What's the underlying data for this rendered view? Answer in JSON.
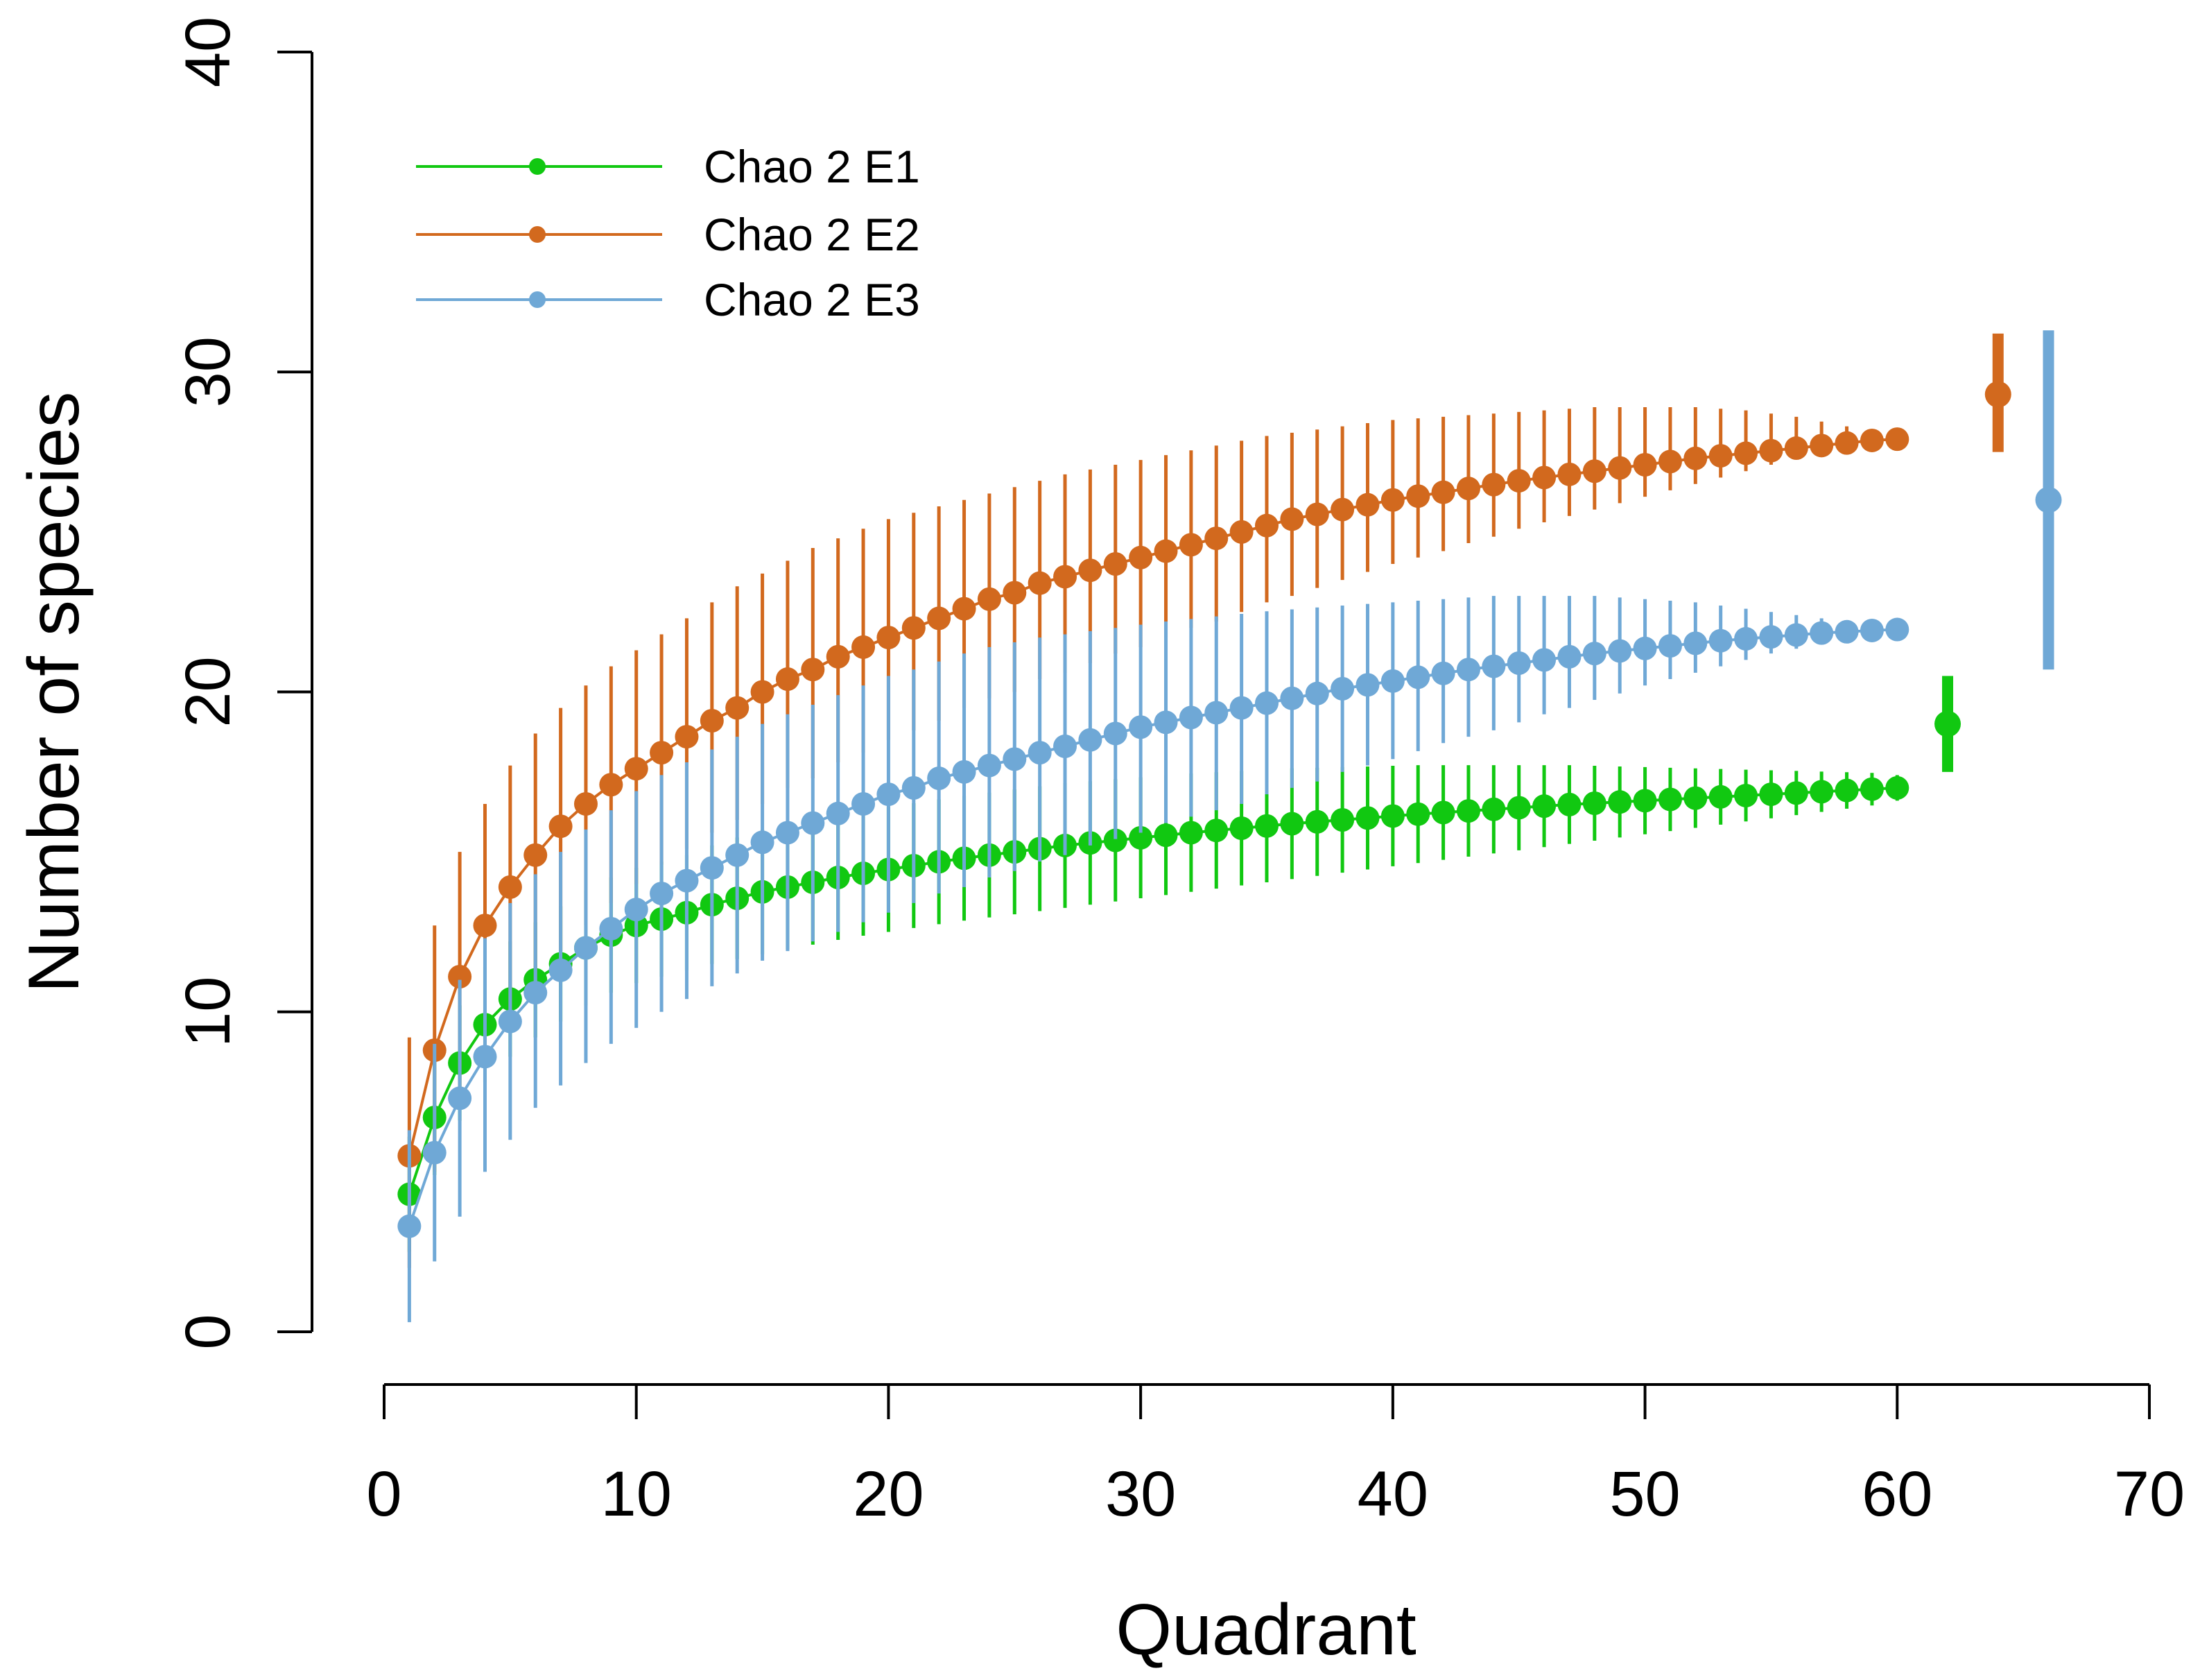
{
  "chart_data": {
    "type": "line",
    "title": "",
    "xlabel": "Quadrant",
    "ylabel": "Number of species",
    "xlim": [
      0,
      70
    ],
    "ylim": [
      0,
      40
    ],
    "xticks": [
      0,
      10,
      20,
      30,
      40,
      50,
      60,
      70
    ],
    "yticks": [
      0,
      10,
      20,
      30,
      40
    ],
    "grid": false,
    "legend_position": "top-left",
    "x": [
      1,
      2,
      3,
      4,
      5,
      6,
      7,
      8,
      9,
      10,
      11,
      12,
      13,
      14,
      15,
      16,
      17,
      18,
      19,
      20,
      21,
      22,
      23,
      24,
      25,
      26,
      27,
      28,
      29,
      30,
      31,
      32,
      33,
      34,
      35,
      36,
      37,
      38,
      39,
      40,
      41,
      42,
      43,
      44,
      45,
      46,
      47,
      48,
      49,
      50,
      51,
      52,
      53,
      54,
      55,
      56,
      57,
      58,
      59,
      60
    ],
    "series": [
      {
        "name": "Chao 2 E1",
        "color": "#11c811",
        "values": [
          4.3,
          6.7,
          8.4,
          9.6,
          10.4,
          11.0,
          11.5,
          12.0,
          12.4,
          12.7,
          12.9,
          13.1,
          13.35,
          13.55,
          13.75,
          13.9,
          14.05,
          14.2,
          14.33,
          14.45,
          14.57,
          14.69,
          14.8,
          14.9,
          15.0,
          15.1,
          15.2,
          15.28,
          15.36,
          15.44,
          15.52,
          15.6,
          15.67,
          15.74,
          15.81,
          15.88,
          15.94,
          16.0,
          16.06,
          16.12,
          16.18,
          16.23,
          16.28,
          16.33,
          16.38,
          16.43,
          16.48,
          16.52,
          16.56,
          16.6,
          16.64,
          16.68,
          16.72,
          16.76,
          16.8,
          16.84,
          16.88,
          16.92,
          16.96,
          17.0
        ],
        "lower": [
          2.5,
          4.9,
          6.6,
          7.8,
          8.6,
          9.2,
          9.7,
          10.2,
          10.6,
          10.9,
          11.1,
          11.3,
          11.5,
          11.65,
          11.8,
          11.95,
          12.1,
          12.25,
          12.38,
          12.5,
          12.62,
          12.74,
          12.85,
          12.95,
          13.05,
          13.15,
          13.25,
          13.35,
          13.45,
          13.55,
          13.65,
          13.75,
          13.85,
          13.95,
          14.05,
          14.15,
          14.25,
          14.35,
          14.45,
          14.55,
          14.65,
          14.75,
          14.85,
          14.95,
          15.05,
          15.15,
          15.25,
          15.35,
          15.45,
          15.55,
          15.65,
          15.75,
          15.85,
          15.95,
          16.05,
          16.15,
          16.25,
          16.35,
          16.45,
          16.6
        ],
        "upper": [
          6.1,
          8.5,
          10.2,
          11.4,
          12.2,
          12.8,
          13.3,
          13.8,
          14.2,
          14.5,
          14.7,
          14.9,
          15.2,
          15.45,
          15.7,
          15.85,
          16.0,
          16.15,
          16.28,
          16.4,
          16.52,
          16.64,
          16.75,
          16.85,
          16.95,
          17.05,
          17.15,
          17.21,
          17.27,
          17.33,
          17.39,
          17.45,
          17.49,
          17.53,
          17.57,
          17.61,
          17.63,
          17.65,
          17.67,
          17.69,
          17.71,
          17.71,
          17.71,
          17.71,
          17.71,
          17.71,
          17.71,
          17.69,
          17.67,
          17.65,
          17.63,
          17.61,
          17.59,
          17.57,
          17.55,
          17.53,
          17.51,
          17.49,
          17.47,
          17.4
        ],
        "estimate": {
          "x": 62,
          "value": 19.0,
          "lower": 17.5,
          "upper": 20.5
        }
      },
      {
        "name": "Chao 2 E2",
        "color": "#d2691e",
        "values": [
          5.5,
          8.8,
          11.1,
          12.7,
          13.9,
          14.9,
          15.8,
          16.5,
          17.1,
          17.6,
          18.1,
          18.6,
          19.1,
          19.5,
          20.0,
          20.4,
          20.7,
          21.1,
          21.4,
          21.7,
          22.0,
          22.3,
          22.6,
          22.9,
          23.1,
          23.4,
          23.6,
          23.8,
          24.0,
          24.2,
          24.4,
          24.6,
          24.8,
          25.0,
          25.2,
          25.4,
          25.55,
          25.7,
          25.85,
          26.0,
          26.12,
          26.24,
          26.36,
          26.48,
          26.6,
          26.7,
          26.8,
          26.9,
          27.0,
          27.1,
          27.2,
          27.3,
          27.38,
          27.46,
          27.54,
          27.62,
          27.7,
          27.78,
          27.86,
          27.9
        ],
        "lower": [
          2.0,
          5.0,
          7.1,
          8.7,
          9.9,
          10.9,
          11.9,
          12.7,
          13.4,
          14.0,
          14.6,
          15.1,
          15.6,
          16.0,
          16.5,
          17.0,
          17.3,
          17.8,
          18.1,
          18.5,
          18.8,
          19.1,
          19.5,
          19.8,
          20.0,
          20.4,
          20.6,
          20.9,
          21.2,
          21.4,
          21.7,
          22.0,
          22.2,
          22.5,
          22.8,
          23.0,
          23.25,
          23.5,
          23.75,
          24.0,
          24.2,
          24.4,
          24.65,
          24.85,
          25.1,
          25.3,
          25.5,
          25.7,
          25.9,
          26.1,
          26.3,
          26.5,
          26.7,
          26.9,
          27.1,
          27.3,
          27.5,
          27.62,
          27.74,
          27.8
        ],
        "upper": [
          9.2,
          12.7,
          15.0,
          16.5,
          17.7,
          18.7,
          19.5,
          20.2,
          20.8,
          21.3,
          21.8,
          22.3,
          22.8,
          23.3,
          23.7,
          24.1,
          24.5,
          24.8,
          25.1,
          25.4,
          25.6,
          25.8,
          26.0,
          26.2,
          26.4,
          26.6,
          26.8,
          26.95,
          27.1,
          27.25,
          27.4,
          27.55,
          27.7,
          27.85,
          28.0,
          28.1,
          28.2,
          28.3,
          28.4,
          28.5,
          28.55,
          28.6,
          28.65,
          28.7,
          28.75,
          28.8,
          28.85,
          28.9,
          28.9,
          28.9,
          28.9,
          28.9,
          28.85,
          28.8,
          28.7,
          28.6,
          28.45,
          28.3,
          28.1,
          28.0
        ],
        "estimate": {
          "x": 64,
          "value": 29.3,
          "lower": 27.5,
          "upper": 31.2
        }
      },
      {
        "name": "Chao 2 E3",
        "color": "#6fa8d6",
        "values": [
          3.3,
          5.6,
          7.3,
          8.6,
          9.7,
          10.6,
          11.3,
          12.0,
          12.6,
          13.2,
          13.7,
          14.1,
          14.5,
          14.9,
          15.3,
          15.6,
          15.9,
          16.2,
          16.5,
          16.8,
          17.0,
          17.3,
          17.5,
          17.7,
          17.9,
          18.1,
          18.3,
          18.5,
          18.7,
          18.9,
          19.05,
          19.2,
          19.35,
          19.5,
          19.65,
          19.8,
          19.95,
          20.1,
          20.22,
          20.34,
          20.46,
          20.58,
          20.7,
          20.8,
          20.9,
          21.0,
          21.1,
          21.2,
          21.28,
          21.36,
          21.44,
          21.52,
          21.6,
          21.66,
          21.72,
          21.78,
          21.84,
          21.88,
          21.92,
          21.95
        ],
        "lower": [
          0.3,
          2.2,
          3.6,
          5.0,
          6.0,
          7.0,
          7.7,
          8.4,
          9.0,
          9.5,
          10.0,
          10.4,
          10.8,
          11.2,
          11.6,
          11.9,
          12.2,
          12.5,
          12.8,
          13.1,
          13.4,
          13.7,
          13.9,
          14.2,
          14.4,
          14.7,
          14.9,
          15.2,
          15.4,
          15.6,
          15.9,
          16.1,
          16.3,
          16.5,
          16.8,
          17.0,
          17.2,
          17.5,
          17.7,
          17.9,
          18.15,
          18.4,
          18.6,
          18.8,
          19.05,
          19.3,
          19.5,
          19.75,
          19.95,
          20.2,
          20.4,
          20.6,
          20.8,
          21.0,
          21.2,
          21.35,
          21.5,
          21.6,
          21.7,
          21.8
        ],
        "upper": [
          6.3,
          9.0,
          11.0,
          12.3,
          13.4,
          14.3,
          15.0,
          15.7,
          16.3,
          16.9,
          17.4,
          17.8,
          18.2,
          18.6,
          19.0,
          19.3,
          19.6,
          19.9,
          20.2,
          20.5,
          20.7,
          20.95,
          21.2,
          21.4,
          21.55,
          21.7,
          21.8,
          21.9,
          22.0,
          22.1,
          22.2,
          22.28,
          22.36,
          22.44,
          22.52,
          22.58,
          22.64,
          22.7,
          22.75,
          22.8,
          22.85,
          22.9,
          22.95,
          23.0,
          23.0,
          23.0,
          23.0,
          23.0,
          22.95,
          22.9,
          22.85,
          22.8,
          22.7,
          22.6,
          22.5,
          22.4,
          22.3,
          22.2,
          22.1,
          22.0
        ],
        "estimate": {
          "x": 66,
          "value": 26.0,
          "lower": 20.7,
          "upper": 31.3
        }
      }
    ]
  }
}
